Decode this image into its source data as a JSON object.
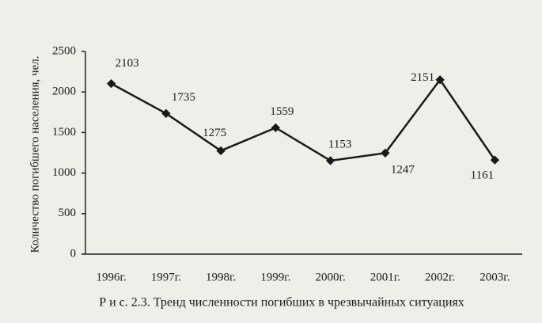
{
  "chart_data": {
    "type": "line",
    "caption": "Р и с. 2.3. Тренд численности погибших в чрезвычайных ситуациях",
    "y_label": "Количество погибшего населения, чел.",
    "categories": [
      "1996г.",
      "1997г.",
      "1998г.",
      "1999г.",
      "2000г.",
      "2001г.",
      "2002г.",
      "2003г."
    ],
    "values": [
      2103,
      1735,
      1275,
      1559,
      1153,
      1247,
      2151,
      1161
    ],
    "color": "#1a1a1a",
    "ylim": [
      0,
      2500
    ],
    "yticks": [
      0,
      500,
      1000,
      1500,
      2000,
      2500
    ]
  }
}
